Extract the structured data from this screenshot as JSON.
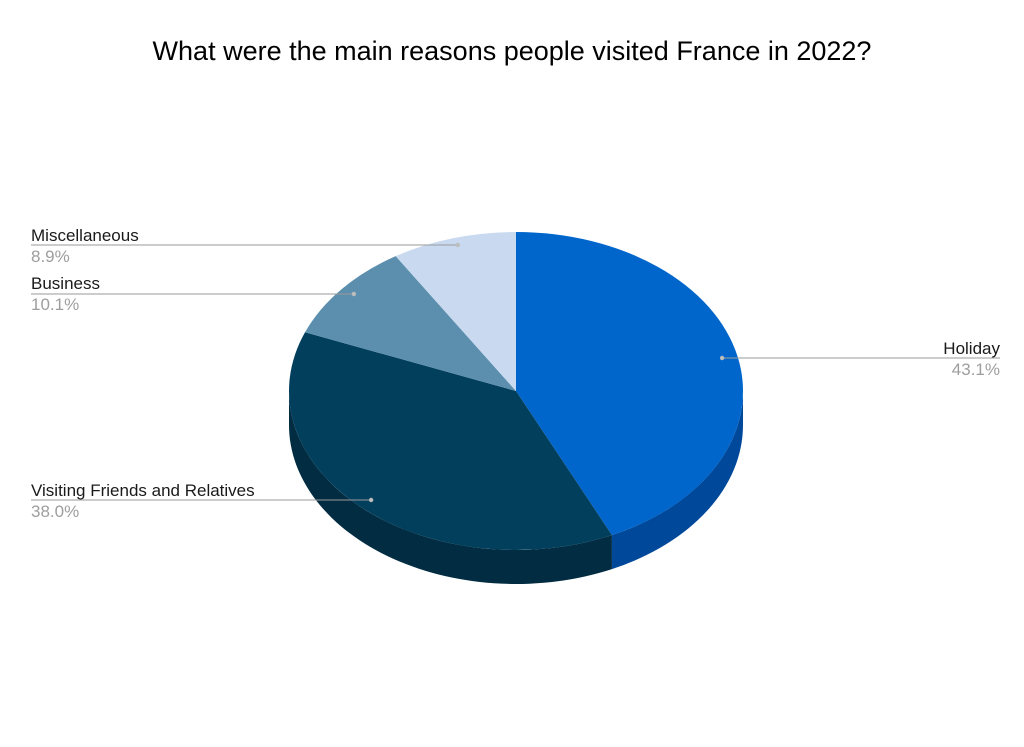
{
  "chart_data": {
    "type": "pie",
    "title": "What were the main reasons people visited France in 2022?",
    "style": "3d",
    "slices": [
      {
        "label": "Holiday",
        "value": 43.1,
        "value_label": "43.1%",
        "color": "#0066cc",
        "side_color": "#00489a"
      },
      {
        "label": "Visiting Friends and Relatives",
        "value": 38.0,
        "value_label": "38.0%",
        "color": "#023f5c",
        "side_color": "#012c42"
      },
      {
        "label": "Business",
        "value": 10.1,
        "value_label": "10.1%",
        "color": "#5b8fad",
        "side_color": "#41697f"
      },
      {
        "label": "Miscellaneous",
        "value": 8.9,
        "value_label": "8.9%",
        "color": "#c8d9f0",
        "side_color": "#98a7bc"
      }
    ]
  }
}
